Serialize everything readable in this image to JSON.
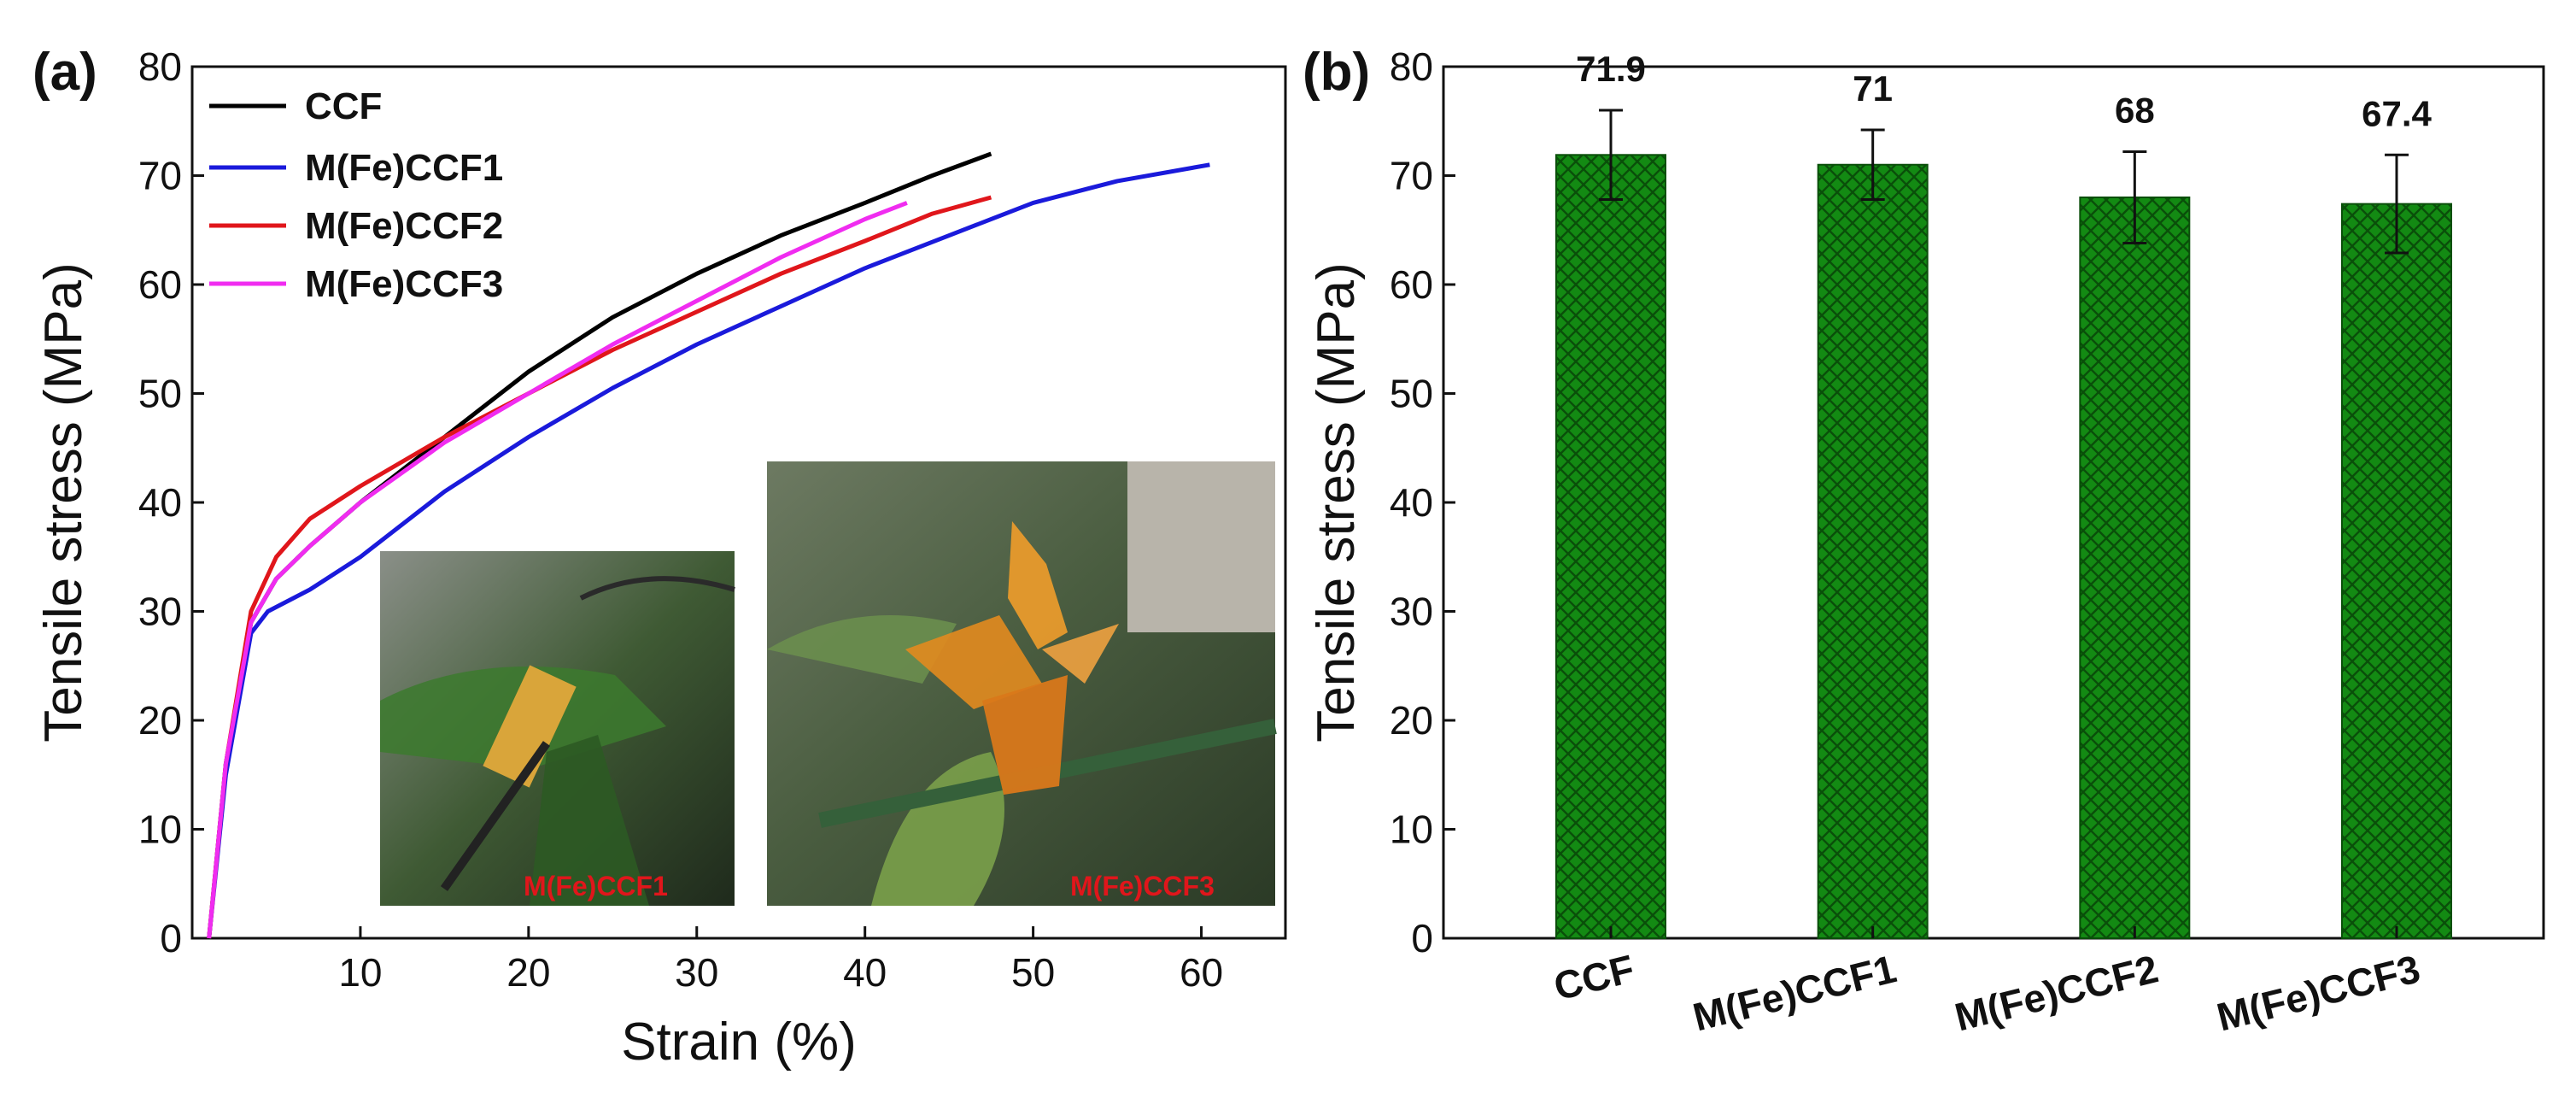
{
  "figure": {
    "label_a": "(a)",
    "label_b": "(b)"
  },
  "colors": {
    "CCF": "#000000",
    "M(Fe)CCF1": "#1a1adb",
    "M(Fe)CCF2": "#e0161b",
    "M(Fe)CCF3": "#f02cf0",
    "bar_fill": "#138a13",
    "photo_label": "#e0161b"
  },
  "insets": [
    {
      "label": "M(Fe)CCF1",
      "icon": "photo-film-on-plant"
    },
    {
      "label": "M(Fe)CCF3",
      "icon": "photo-origami-crane"
    }
  ],
  "chart_data": [
    {
      "type": "line",
      "panel": "(a)",
      "xlabel": "Strain (%)",
      "ylabel": "Tensile stress (MPa)",
      "xlim": [
        0,
        65
      ],
      "ylim": [
        0,
        80
      ],
      "xticks": [
        "10",
        "20",
        "30",
        "40",
        "50",
        "60"
      ],
      "yticks": [
        "0",
        "10",
        "20",
        "30",
        "40",
        "50",
        "60",
        "70",
        "80"
      ],
      "legend_position": "top-left",
      "series": [
        {
          "name": "CCF",
          "x": [
            1.0,
            2.0,
            3.5,
            5.0,
            7.0,
            10.0,
            15.0,
            20.0,
            25.0,
            30.0,
            35.0,
            40.0,
            44.0,
            47.5
          ],
          "y": [
            0,
            16,
            29,
            33,
            36,
            40,
            46,
            52,
            57,
            61,
            64.5,
            67.5,
            70,
            72
          ]
        },
        {
          "name": "M(Fe)CCF1",
          "x": [
            1.0,
            2.0,
            3.5,
            4.5,
            7.0,
            10.0,
            15.0,
            20.0,
            25.0,
            30.0,
            35.0,
            40.0,
            45.0,
            50.0,
            55.0,
            60.5
          ],
          "y": [
            0,
            15,
            28,
            30,
            32,
            35,
            41,
            46,
            50.5,
            54.5,
            58,
            61.5,
            64.5,
            67.5,
            69.5,
            71
          ]
        },
        {
          "name": "M(Fe)CCF2",
          "x": [
            1.0,
            2.0,
            3.5,
            5.0,
            7.0,
            10.0,
            15.0,
            20.0,
            25.0,
            30.0,
            35.0,
            40.0,
            44.0,
            47.5
          ],
          "y": [
            0,
            16,
            30,
            35,
            38.5,
            41.5,
            46,
            50,
            54,
            57.5,
            61,
            64,
            66.5,
            68
          ]
        },
        {
          "name": "M(Fe)CCF3",
          "x": [
            1.0,
            2.0,
            3.5,
            5.0,
            7.0,
            10.0,
            15.0,
            20.0,
            25.0,
            30.0,
            35.0,
            40.0,
            42.5
          ],
          "y": [
            0,
            16,
            29,
            33,
            36,
            40,
            45.5,
            50,
            54.5,
            58.5,
            62.5,
            66,
            67.5
          ]
        }
      ]
    },
    {
      "type": "bar",
      "panel": "(b)",
      "xlabel": "",
      "ylabel": "Tensile stress (MPa)",
      "ylim": [
        0,
        80
      ],
      "yticks": [
        "0",
        "10",
        "20",
        "30",
        "40",
        "50",
        "60",
        "70",
        "80"
      ],
      "categories": [
        "CCF",
        "M(Fe)CCF1",
        "M(Fe)CCF2",
        "M(Fe)CCF3"
      ],
      "values": [
        71.9,
        71,
        68,
        67.4
      ],
      "value_labels": [
        "71.9",
        "71",
        "68",
        "67.4"
      ],
      "error": [
        4.1,
        3.2,
        4.2,
        4.5
      ]
    }
  ]
}
